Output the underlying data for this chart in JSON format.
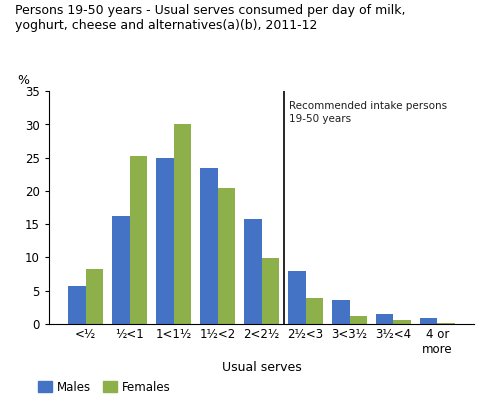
{
  "title": "Persons 19-50 years - Usual serves consumed per day of milk,\nyoghurt, cheese and alternatives(a)(b), 2011-12",
  "categories": [
    "<½",
    "½<1",
    "1<1½",
    "1½<2",
    "2<2½",
    "2½<3",
    "3<3½",
    "3½<4",
    "4 or\nmore"
  ],
  "males": [
    5.7,
    16.2,
    25.0,
    23.5,
    15.7,
    8.0,
    3.5,
    1.5,
    0.9
  ],
  "females": [
    8.3,
    25.2,
    30.0,
    20.5,
    9.9,
    3.9,
    1.2,
    0.5,
    0.1
  ],
  "males_color": "#4472C4",
  "females_color": "#8DB04A",
  "ylabel": "%",
  "xlabel": "Usual serves",
  "ylim": [
    0,
    35
  ],
  "yticks": [
    0,
    5,
    10,
    15,
    20,
    25,
    30,
    35
  ],
  "vline_position": 4.5,
  "vline_label": "Recommended intake persons\n19-50 years",
  "vline_label_color": "#1F1F1F",
  "legend_labels": [
    "Males",
    "Females"
  ],
  "bar_width": 0.4
}
